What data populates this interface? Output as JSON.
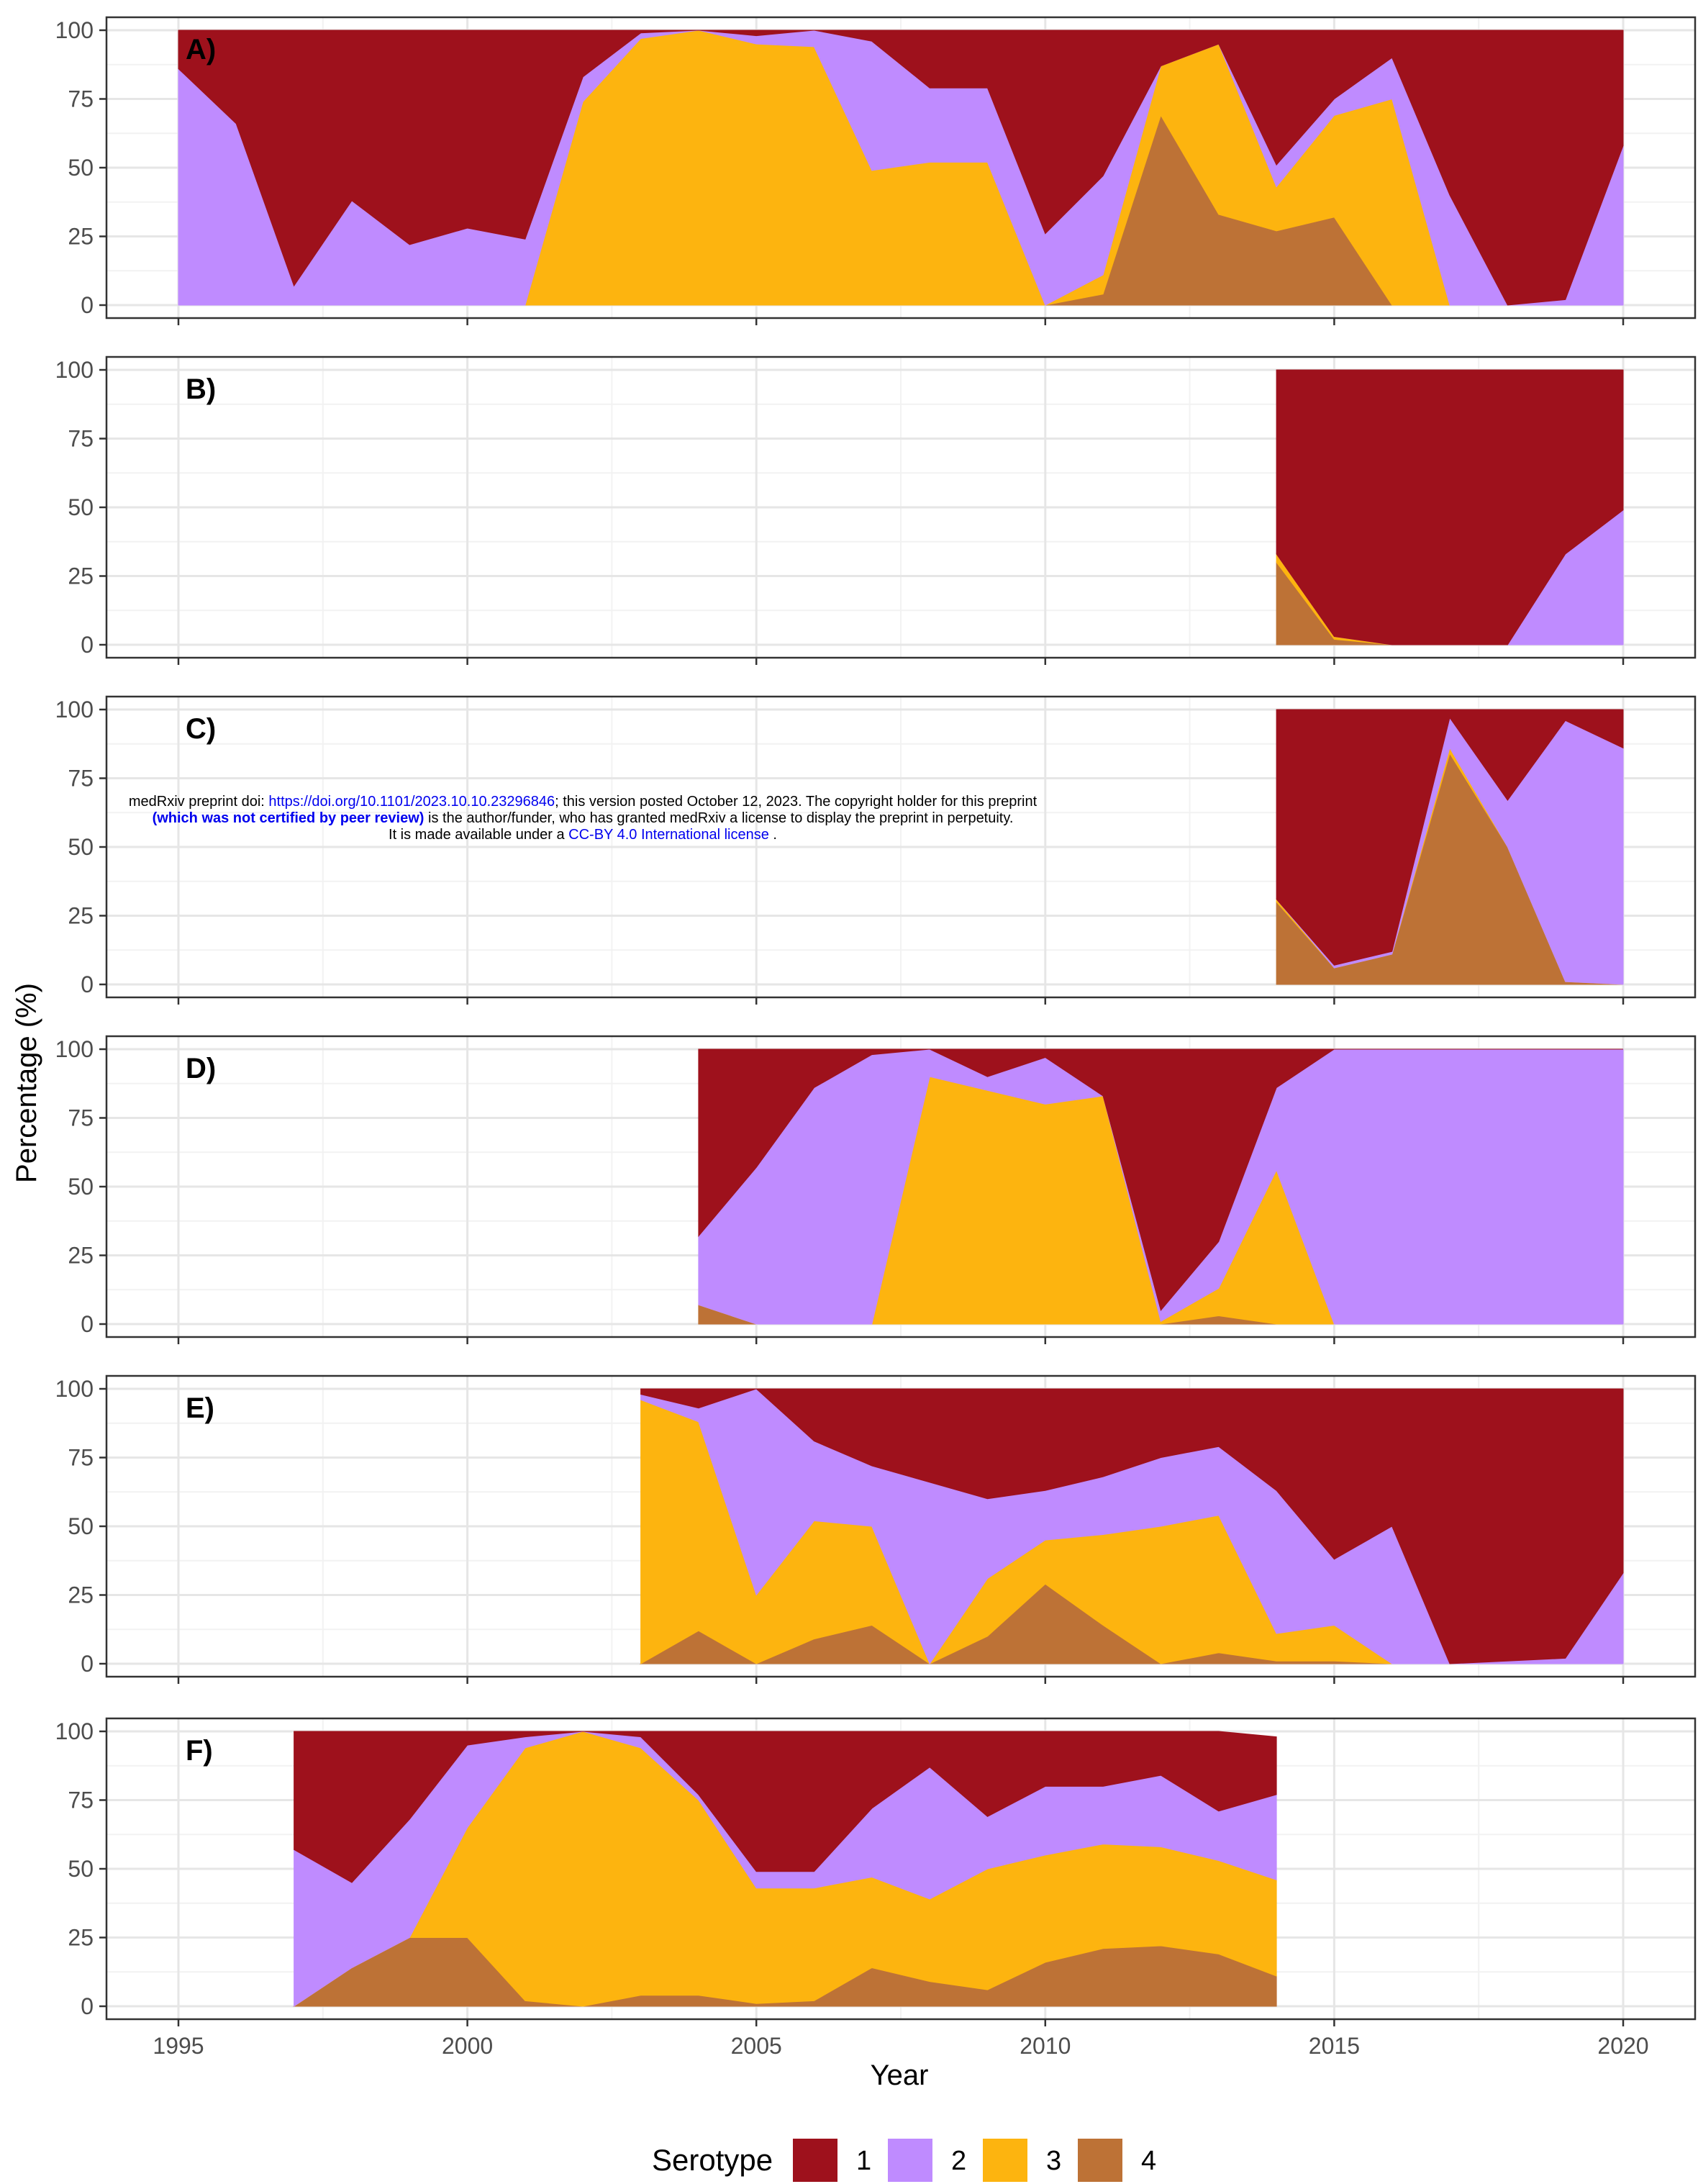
{
  "chart_data": {
    "type": "area",
    "stacked": true,
    "xlabel": "Year",
    "ylabel": "Percentage (%)",
    "xlim": [
      1994,
      2021
    ],
    "ylim": [
      0,
      100
    ],
    "x_ticks": [
      1995,
      2000,
      2005,
      2010,
      2015,
      2020
    ],
    "y_ticks": [
      0,
      25,
      50,
      75,
      100
    ],
    "grid": true,
    "legend": {
      "title": "Serotype",
      "placement": "bottom",
      "entries": [
        {
          "label": "1",
          "color": "#9e111c"
        },
        {
          "label": "2",
          "color": "#bf8bff"
        },
        {
          "label": "3",
          "color": "#fdb40f"
        },
        {
          "label": "4",
          "color": "#bd7236"
        }
      ]
    },
    "panels": [
      {
        "label": "A)",
        "x": [
          1995,
          1996,
          1997,
          1998,
          1999,
          2000,
          2001,
          2002,
          2003,
          2004,
          2005,
          2006,
          2007,
          2008,
          2009,
          2010,
          2011,
          2012,
          2013,
          2014,
          2015,
          2016,
          2017,
          2018,
          2019,
          2020
        ],
        "series": [
          {
            "name": "4",
            "values": [
              0,
              0,
              0,
              0,
              0,
              0,
              0,
              0,
              0,
              0,
              0,
              0,
              0,
              0,
              0,
              0,
              4,
              69,
              33,
              27,
              32,
              0,
              0,
              0,
              0,
              0
            ]
          },
          {
            "name": "3",
            "values": [
              0,
              0,
              0,
              0,
              0,
              0,
              0,
              74,
              97,
              100,
              95,
              94,
              49,
              52,
              52,
              0,
              7,
              18,
              62,
              16,
              37,
              75,
              0,
              0,
              0,
              0
            ]
          },
          {
            "name": "2",
            "values": [
              86,
              66,
              7,
              38,
              22,
              28,
              24,
              9,
              2,
              0,
              3,
              6,
              47,
              27,
              27,
              26,
              36,
              0,
              0,
              8,
              6,
              15,
              40,
              0,
              2,
              58
            ]
          },
          {
            "name": "1",
            "values": [
              14,
              34,
              93,
              62,
              78,
              72,
              76,
              17,
              1,
              0,
              2,
              0,
              4,
              21,
              21,
              74,
              53,
              13,
              5,
              49,
              25,
              10,
              60,
              100,
              98,
              42
            ]
          }
        ]
      },
      {
        "label": "B)",
        "x": [
          2014,
          2015,
          2016,
          2017,
          2018,
          2019,
          2020
        ],
        "series": [
          {
            "name": "4",
            "values": [
              30,
              2,
              0,
              0,
              0,
              0,
              0
            ]
          },
          {
            "name": "3",
            "values": [
              3,
              1,
              0,
              0,
              0,
              0,
              0
            ]
          },
          {
            "name": "2",
            "values": [
              0,
              0,
              0,
              0,
              0,
              33,
              49
            ]
          },
          {
            "name": "1",
            "values": [
              67,
              97,
              100,
              100,
              100,
              67,
              51
            ]
          }
        ]
      },
      {
        "label": "C)",
        "x": [
          2014,
          2015,
          2016,
          2017,
          2018,
          2019,
          2020
        ],
        "series": [
          {
            "name": "4",
            "values": [
              30,
              6,
              11,
              84,
              50,
              1,
              0
            ]
          },
          {
            "name": "3",
            "values": [
              1,
              0,
              0,
              2,
              0,
              0,
              0
            ]
          },
          {
            "name": "2",
            "values": [
              0,
              1,
              1,
              11,
              17,
              95,
              86
            ]
          },
          {
            "name": "1",
            "values": [
              69,
              93,
              88,
              3,
              33,
              4,
              14
            ]
          }
        ]
      },
      {
        "label": "D)",
        "x": [
          2004,
          2005,
          2006,
          2007,
          2008,
          2009,
          2010,
          2011,
          2012,
          2013,
          2014,
          2015,
          2016,
          2017,
          2018,
          2019,
          2020
        ],
        "series": [
          {
            "name": "4",
            "values": [
              7,
              0,
              0,
              0,
              0,
              0,
              0,
              0,
              0,
              3,
              0,
              0,
              0,
              0,
              0,
              0,
              0
            ]
          },
          {
            "name": "3",
            "values": [
              0,
              0,
              0,
              0,
              90,
              85,
              80,
              83,
              1,
              10,
              56,
              0,
              0,
              0,
              0,
              0,
              0
            ]
          },
          {
            "name": "2",
            "values": [
              25,
              57,
              86,
              98,
              10,
              5,
              17,
              0,
              4,
              17,
              30,
              100,
              100,
              100,
              100,
              100,
              100
            ]
          },
          {
            "name": "1",
            "values": [
              68,
              43,
              14,
              2,
              0,
              10,
              3,
              17,
              95,
              70,
              14,
              0,
              0,
              0,
              0,
              0,
              0
            ]
          }
        ]
      },
      {
        "label": "E)",
        "x": [
          2003,
          2004,
          2005,
          2006,
          2007,
          2008,
          2009,
          2010,
          2011,
          2012,
          2013,
          2014,
          2015,
          2016,
          2017,
          2018,
          2019,
          2020
        ],
        "series": [
          {
            "name": "4",
            "values": [
              0,
              12,
              0,
              9,
              14,
              0,
              10,
              29,
              14,
              0,
              4,
              1,
              1,
              0,
              0,
              0,
              0,
              0
            ]
          },
          {
            "name": "3",
            "values": [
              96,
              76,
              25,
              43,
              36,
              0,
              21,
              16,
              33,
              50,
              50,
              10,
              13,
              0,
              0,
              0,
              0,
              0
            ]
          },
          {
            "name": "2",
            "values": [
              2,
              5,
              75,
              29,
              22,
              66,
              29,
              18,
              21,
              25,
              25,
              52,
              24,
              50,
              0,
              1,
              2,
              33
            ]
          },
          {
            "name": "1",
            "values": [
              2,
              7,
              0,
              19,
              28,
              34,
              40,
              37,
              32,
              25,
              21,
              37,
              62,
              50,
              100,
              99,
              98,
              67
            ]
          }
        ]
      },
      {
        "label": "F)",
        "x": [
          1997,
          1998,
          1999,
          2000,
          2001,
          2002,
          2003,
          2004,
          2005,
          2006,
          2007,
          2008,
          2009,
          2010,
          2011,
          2012,
          2013,
          2014
        ],
        "series": [
          {
            "name": "4",
            "values": [
              0,
              14,
              25,
              25,
              2,
              0,
              4,
              4,
              1,
              2,
              14,
              9,
              6,
              16,
              21,
              22,
              19,
              11
            ]
          },
          {
            "name": "3",
            "values": [
              0,
              0,
              0,
              40,
              92,
              100,
              90,
              71,
              42,
              41,
              33,
              30,
              44,
              39,
              38,
              36,
              34,
              35
            ]
          },
          {
            "name": "2",
            "values": [
              57,
              31,
              43,
              30,
              4,
              0,
              4,
              2,
              6,
              6,
              25,
              48,
              19,
              25,
              21,
              26,
              18,
              31
            ]
          },
          {
            "name": "1",
            "values": [
              43,
              55,
              32,
              5,
              2,
              0,
              2,
              23,
              51,
              51,
              28,
              13,
              31,
              20,
              20,
              16,
              29,
              21
            ]
          }
        ]
      }
    ]
  },
  "watermark": {
    "line1_prefix": "medRxiv preprint doi: ",
    "line1_link": "https://doi.org/10.1101/2023.10.10.23296846",
    "line1_suffix": "; this version posted October 12, 2023. The copyright holder for this preprint",
    "line2_bold": "(which was not certified by peer review)",
    "line2_suffix": " is the author/funder, who has granted medRxiv a license to display the preprint in perpetuity.",
    "line3_prefix": "It is made available under a ",
    "line3_link": "CC-BY 4.0 International license",
    "line3_suffix": " ."
  }
}
